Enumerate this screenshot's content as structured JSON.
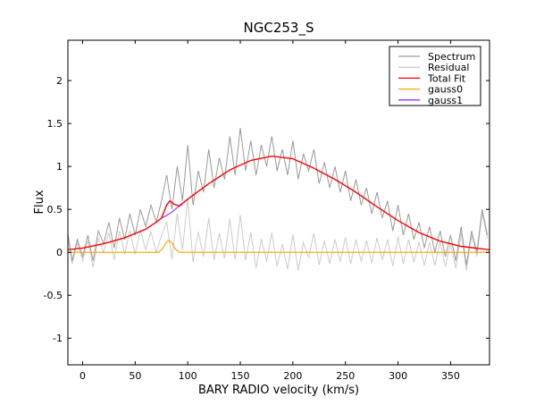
{
  "chart_data": {
    "type": "line",
    "title": "NGC253_S",
    "xlabel": "BARY RADIO velocity (km/s)",
    "ylabel": "Flux",
    "xlim": [
      -14,
      387
    ],
    "ylim": [
      -1.31,
      2.47
    ],
    "xticks": [
      0,
      50,
      100,
      150,
      200,
      250,
      300,
      350
    ],
    "yticks": [
      -1,
      -0.5,
      0,
      0.5,
      1,
      1.5,
      2
    ],
    "grid": false,
    "legend_position": "top-right",
    "series": [
      {
        "name": "Spectrum",
        "color": "#999999",
        "x_start": -15,
        "x_step": 5,
        "values": [
          0.3,
          -0.1,
          0.15,
          -0.05,
          0.2,
          -0.1,
          0.25,
          0.1,
          0.35,
          0.05,
          0.4,
          0.15,
          0.45,
          0.2,
          0.5,
          0.3,
          0.55,
          0.35,
          0.6,
          0.9,
          0.5,
          1.0,
          0.6,
          1.25,
          0.55,
          0.95,
          0.7,
          1.2,
          0.75,
          1.1,
          0.85,
          1.35,
          0.9,
          1.45,
          0.95,
          1.3,
          0.9,
          1.25,
          1.0,
          1.35,
          0.95,
          1.2,
          0.9,
          1.3,
          0.85,
          1.15,
          0.95,
          1.2,
          0.8,
          1.05,
          0.75,
          1.0,
          0.7,
          0.95,
          0.6,
          0.85,
          0.55,
          0.75,
          0.45,
          0.7,
          0.4,
          0.6,
          0.25,
          0.55,
          0.2,
          0.45,
          0.15,
          0.35,
          0.05,
          0.3,
          0.0,
          0.25,
          -0.05,
          0.2,
          -0.1,
          0.3,
          -0.15,
          0.25,
          0.0,
          0.5,
          0.2
        ]
      },
      {
        "name": "Residual",
        "color": "#cccccc",
        "derived": "Spectrum - Total Fit"
      },
      {
        "name": "Total Fit",
        "color": "#ff0000",
        "points": [
          [
            -15,
            0.03
          ],
          [
            0,
            0.05
          ],
          [
            20,
            0.1
          ],
          [
            40,
            0.17
          ],
          [
            60,
            0.27
          ],
          [
            70,
            0.35
          ],
          [
            75,
            0.4
          ],
          [
            80,
            0.55
          ],
          [
            83,
            0.6
          ],
          [
            87,
            0.56
          ],
          [
            92,
            0.54
          ],
          [
            100,
            0.62
          ],
          [
            120,
            0.8
          ],
          [
            140,
            0.96
          ],
          [
            160,
            1.07
          ],
          [
            180,
            1.12
          ],
          [
            200,
            1.09
          ],
          [
            220,
            0.98
          ],
          [
            240,
            0.85
          ],
          [
            260,
            0.7
          ],
          [
            280,
            0.53
          ],
          [
            300,
            0.37
          ],
          [
            320,
            0.23
          ],
          [
            340,
            0.13
          ],
          [
            360,
            0.07
          ],
          [
            387,
            0.03
          ]
        ]
      },
      {
        "name": "gauss0",
        "color": "#ffa500",
        "points": [
          [
            -15,
            0
          ],
          [
            72,
            0
          ],
          [
            76,
            0.04
          ],
          [
            79,
            0.11
          ],
          [
            82,
            0.14
          ],
          [
            85,
            0.11
          ],
          [
            88,
            0.04
          ],
          [
            92,
            0
          ],
          [
            387,
            0
          ]
        ]
      },
      {
        "name": "gauss1",
        "color": "#9933ff",
        "points": [
          [
            75,
            0.4
          ],
          [
            80,
            0.43
          ],
          [
            85,
            0.47
          ],
          [
            90,
            0.52
          ],
          [
            95,
            0.56
          ]
        ]
      }
    ]
  }
}
